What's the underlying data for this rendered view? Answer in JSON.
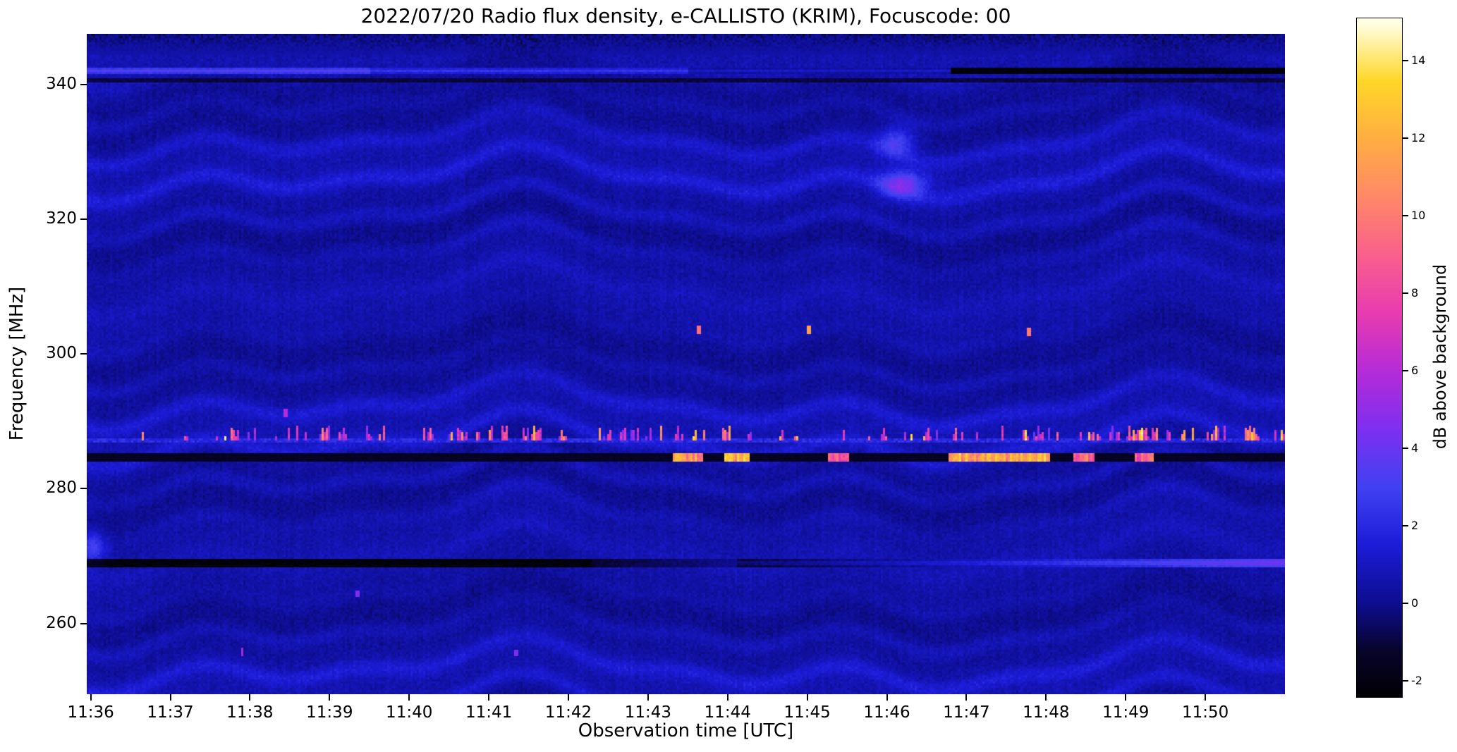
{
  "figure": {
    "title": "2022/07/20  Radio flux density, e-CALLISTO (KRIM), Focuscode: 00",
    "xlabel": "Observation time [UTC]",
    "ylabel": "Frequency [MHz]",
    "colorbar_label": "dB above background"
  },
  "chart_data": {
    "type": "heatmap",
    "title": "2022/07/20  Radio flux density, e-CALLISTO (KRIM), Focuscode: 00",
    "xlabel": "Observation time [UTC]",
    "ylabel": "Frequency [MHz]",
    "x_tick_labels": [
      "11:36",
      "11:37",
      "11:38",
      "11:39",
      "11:40",
      "11:41",
      "11:42",
      "11:43",
      "11:44",
      "11:45",
      "11:46",
      "11:47",
      "11:48",
      "11:49",
      "11:50"
    ],
    "x_tick_offsets_min": [
      0,
      1,
      2,
      3,
      4,
      5,
      6,
      7,
      8,
      9,
      10,
      11,
      12,
      13,
      14
    ],
    "time_range_min": [
      -0.05,
      15.0
    ],
    "y_ticks_mhz": [
      260,
      280,
      300,
      320,
      340
    ],
    "freq_range_mhz": [
      249.5,
      347.5
    ],
    "colorbar": {
      "label": "dB above background",
      "ticks": [
        -2,
        0,
        2,
        4,
        6,
        8,
        10,
        12,
        14
      ],
      "range": [
        -2.4,
        15.1
      ]
    },
    "colormap_stops": [
      {
        "v": -2.5,
        "c": "#000000"
      },
      {
        "v": -1.2,
        "c": "#08042c"
      },
      {
        "v": 0.0,
        "c": "#0d0d8f"
      },
      {
        "v": 1.5,
        "c": "#1c1cd8"
      },
      {
        "v": 3.0,
        "c": "#4141f2"
      },
      {
        "v": 4.5,
        "c": "#7d2ff0"
      },
      {
        "v": 6.0,
        "c": "#b52bd8"
      },
      {
        "v": 7.5,
        "c": "#e83bb0"
      },
      {
        "v": 9.0,
        "c": "#f9608c"
      },
      {
        "v": 10.5,
        "c": "#ff8868"
      },
      {
        "v": 12.0,
        "c": "#ffae42"
      },
      {
        "v": 13.5,
        "c": "#ffd728"
      },
      {
        "v": 15.0,
        "c": "#ffffe6"
      }
    ],
    "background": {
      "base_db": 0.35,
      "noise_db": 0.5,
      "ripple_amp_db": 0.95,
      "ripple_period_mhz": 5.6,
      "ripple_slow_amp_db": 0.3,
      "ripple_slow_period_mhz": 19,
      "top_mottle_above_mhz": 344.5
    },
    "features": {
      "horizontal_lines": [
        {
          "name": "bright-interference-line-342mhz",
          "freq_mhz": 342.0,
          "half_width_mhz": 0.45,
          "segments": [
            {
              "t0": -0.1,
              "t1": 3.5,
              "v": 3.4
            },
            {
              "t0": 3.5,
              "t1": 7.5,
              "v": 2.4
            },
            {
              "t0": 7.5,
              "t1": 10.8,
              "v": 1.2
            },
            {
              "t0": 10.8,
              "t1": 15.1,
              "v": -2.2
            }
          ]
        },
        {
          "name": "dark-line-340mhz",
          "freq_mhz": 340.6,
          "half_width_mhz": 0.3,
          "segments": [
            {
              "t0": -0.1,
              "t1": 15.1,
              "v": -1.0
            }
          ]
        },
        {
          "name": "dark-line-269mhz",
          "freq_mhz": 269.0,
          "half_width_mhz": 0.5,
          "segments": [
            {
              "t0": -0.1,
              "t1": 6.3,
              "v": -2.2
            },
            {
              "t0": 6.3,
              "t1": 15.1,
              "v": -1.2,
              "v1": 4.6
            }
          ]
        }
      ],
      "speckle_band": {
        "freq_mhz": 287.3,
        "half_width_mhz": 0.3,
        "baseline_v": 2.0,
        "speckle_prob": 0.16,
        "speckle_cluster_prob": 0.5,
        "speckle_v": [
          4,
          9.5
        ],
        "bright_frac": 0.2,
        "bright_v": [
          10,
          14.5
        ],
        "height_mhz": [
          0.7,
          2.3
        ]
      },
      "dark_band": {
        "freq_mhz": 284.6,
        "half_width_mhz": 0.7,
        "v": -1.5,
        "bright_patches": [
          {
            "t0": 7.32,
            "t1": 7.68,
            "v": 11.0
          },
          {
            "t0": 7.95,
            "t1": 8.28,
            "v": 12.0
          },
          {
            "t0": 9.25,
            "t1": 9.52,
            "v": 9.0
          },
          {
            "t0": 10.78,
            "t1": 12.05,
            "v": 11.5
          },
          {
            "t0": 12.33,
            "t1": 12.6,
            "v": 9.5
          },
          {
            "t0": 13.12,
            "t1": 13.34,
            "v": 9.0
          }
        ]
      },
      "blobs": [
        {
          "t": 10.12,
          "freq_mhz": 331.5,
          "t_sigma": 0.16,
          "f_sigma": 1.6,
          "v": 2.8
        },
        {
          "t": 10.2,
          "freq_mhz": 325.2,
          "t_sigma": 0.2,
          "f_sigma": 1.4,
          "v": 3.8
        },
        {
          "t": 0.02,
          "freq_mhz": 271.3,
          "t_sigma": 0.12,
          "f_sigma": 1.6,
          "v": 2.4
        }
      ],
      "point_marks": [
        {
          "t": 7.63,
          "freq_mhz": 303.4,
          "f_half_mhz": 0.6,
          "v": 9.5
        },
        {
          "t": 9.02,
          "freq_mhz": 303.6,
          "f_half_mhz": 0.7,
          "v": 11.5
        },
        {
          "t": 11.78,
          "freq_mhz": 303.3,
          "f_half_mhz": 0.6,
          "v": 10.0
        },
        {
          "t": 2.45,
          "freq_mhz": 291.2,
          "f_half_mhz": 0.6,
          "v": 6.0
        },
        {
          "t": 1.9,
          "freq_mhz": 255.8,
          "f_half_mhz": 0.6,
          "v": 5.5
        },
        {
          "t": 3.35,
          "freq_mhz": 264.3,
          "f_half_mhz": 0.5,
          "v": 4.5
        },
        {
          "t": 5.35,
          "freq_mhz": 255.5,
          "f_half_mhz": 0.5,
          "v": 4.5
        }
      ]
    }
  }
}
